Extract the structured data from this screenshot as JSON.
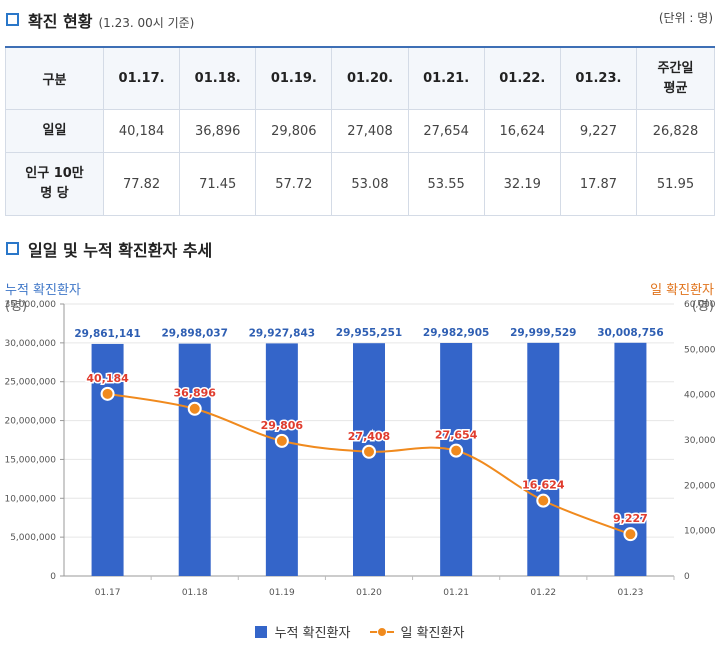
{
  "section1": {
    "title": "확진 현황",
    "note": "(1.23. 00시 기준)",
    "unit": "(단위 : 명)"
  },
  "table": {
    "header": [
      "구분",
      "01.17.",
      "01.18.",
      "01.19.",
      "01.20.",
      "01.21.",
      "01.22.",
      "01.23.",
      "주간일\n평균"
    ],
    "rows": [
      {
        "label": "일일",
        "values": [
          "40,184",
          "36,896",
          "29,806",
          "27,408",
          "27,654",
          "16,624",
          "9,227",
          "26,828"
        ]
      },
      {
        "label": "인구 10만\n명 당",
        "values": [
          "77.82",
          "71.45",
          "57.72",
          "53.08",
          "53.55",
          "32.19",
          "17.87",
          "51.95"
        ]
      }
    ]
  },
  "section2": {
    "title": "일일 및 누적 확진환자 추세"
  },
  "chart_data": {
    "type": "bar",
    "categories": [
      "01.17",
      "01.18",
      "01.19",
      "01.20",
      "01.21",
      "01.22",
      "01.23"
    ],
    "series": [
      {
        "name": "누적 확진환자",
        "type": "bar",
        "axis": "left",
        "values": [
          29861141,
          29898037,
          29927843,
          29955251,
          29982905,
          29999529,
          30008756
        ],
        "labels": [
          "29,861,141",
          "29,898,037",
          "29,927,843",
          "29,955,251",
          "29,982,905",
          "29,999,529",
          "30,008,756"
        ],
        "color": "#3465c9"
      },
      {
        "name": "일 확진환자",
        "type": "line",
        "axis": "right",
        "values": [
          40184,
          36896,
          29806,
          27408,
          27654,
          16624,
          9227
        ],
        "labels": [
          "40,184",
          "36,896",
          "29,806",
          "27,408",
          "27,654",
          "16,624",
          "9,227"
        ],
        "color": "#f08a1e"
      }
    ],
    "left_axis": {
      "title": "누적 확진환자",
      "unit": "(명)",
      "ylim": [
        0,
        35000000
      ],
      "ticks": [
        0,
        5000000,
        10000000,
        15000000,
        20000000,
        25000000,
        30000000,
        35000000
      ],
      "tick_labels": [
        "0",
        "5,000,000",
        "10,000,000",
        "15,000,000",
        "20,000,000",
        "25,000,000",
        "30,000,000",
        "35,000,000"
      ]
    },
    "right_axis": {
      "title": "일 확진환자",
      "unit": "(명)",
      "ylim": [
        0,
        60000
      ],
      "ticks": [
        0,
        10000,
        20000,
        30000,
        40000,
        50000,
        60000
      ],
      "tick_labels": [
        "0",
        "10,000",
        "20,000",
        "30,000",
        "40,000",
        "50,000",
        "60,000"
      ]
    },
    "grid": true,
    "legend": "bottom-center",
    "colors": {
      "bar_label": "#2f5fb3",
      "line_label": "#e03c2e",
      "grid": "#e6e6e6"
    }
  }
}
